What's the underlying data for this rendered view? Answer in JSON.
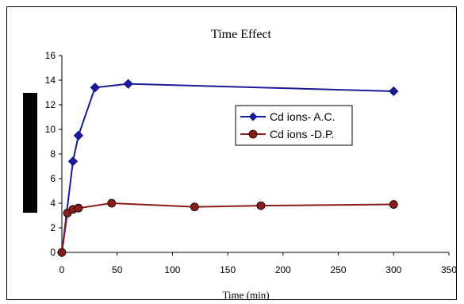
{
  "chart_data": {
    "type": "line",
    "title": "Time Effect",
    "xlabel": "Time (min)",
    "ylabel": "",
    "xlim": [
      0,
      350
    ],
    "ylim": [
      0,
      16
    ],
    "xticks": [
      0,
      50,
      100,
      150,
      200,
      250,
      300,
      350
    ],
    "yticks": [
      0,
      2,
      4,
      6,
      8,
      10,
      12,
      14,
      16
    ],
    "grid": false,
    "legend_position": "center-right",
    "series": [
      {
        "name": "Cd ions- A.C.",
        "color": "#1a1a99",
        "marker": "diamond",
        "x": [
          0,
          10,
          15,
          30,
          60,
          300
        ],
        "y": [
          0,
          7.4,
          9.5,
          13.4,
          13.7,
          13.1
        ]
      },
      {
        "name": "Cd ions -D.P.",
        "color": "#8b1a1a",
        "marker": "circle",
        "x": [
          0,
          5,
          10,
          15,
          45,
          120,
          180,
          300
        ],
        "y": [
          0,
          3.2,
          3.5,
          3.6,
          4.0,
          3.7,
          3.8,
          3.9
        ]
      }
    ]
  }
}
